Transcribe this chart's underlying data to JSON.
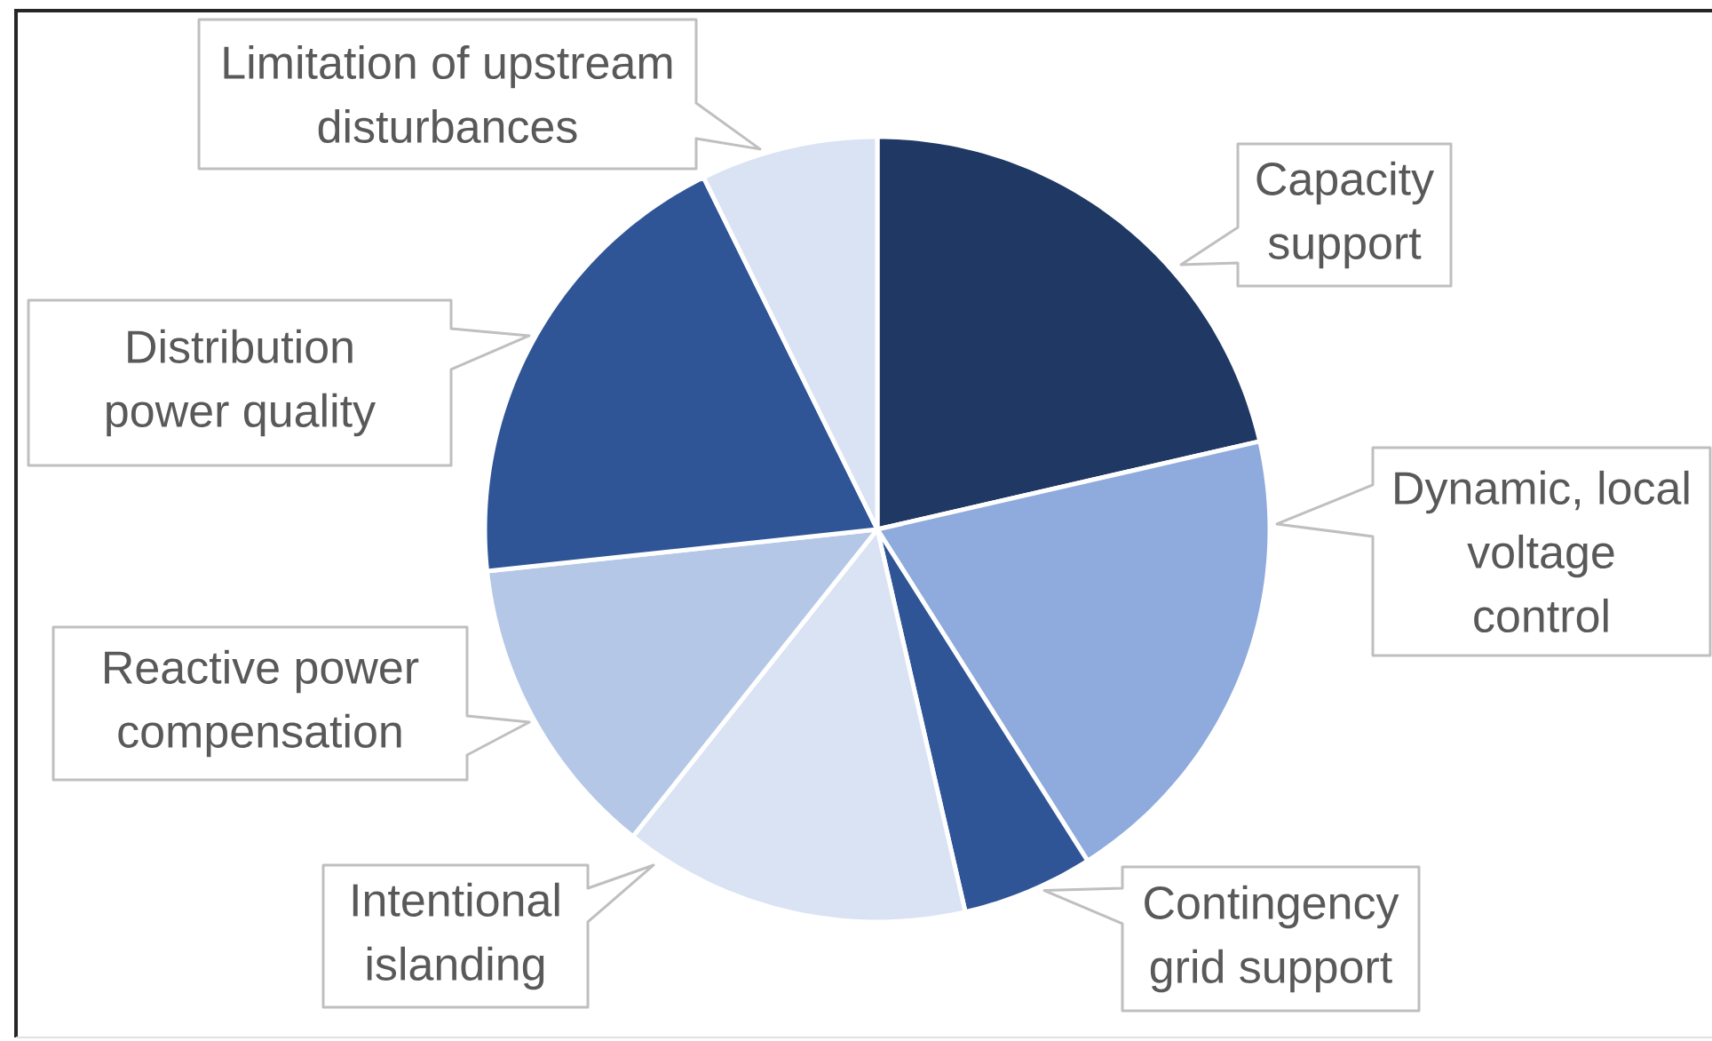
{
  "chart_data": {
    "type": "pie",
    "categories": [
      "Capacity support",
      "Dynamic, local voltage control",
      "Contingency grid support",
      "Intentional islanding",
      "Reactive power compensation",
      "Distribution power quality",
      "Limitation of upstream disturbances"
    ],
    "values": [
      21.4,
      19.6,
      5.4,
      14.3,
      12.6,
      19.4,
      7.3
    ],
    "colors": [
      "#203864",
      "#8faadc",
      "#2f5597",
      "#dae3f3",
      "#b4c7e7",
      "#2f5597",
      "#dae3f3"
    ]
  }
}
